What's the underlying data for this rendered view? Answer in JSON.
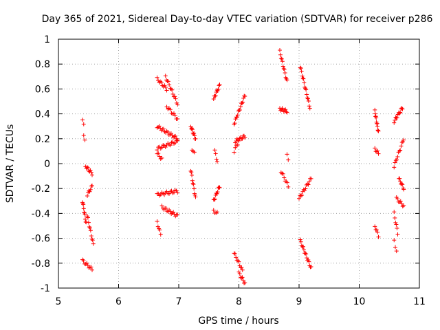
{
  "chart_data": {
    "type": "scatter",
    "title": "Day 365 of 2021, Sidereal Day-to-day VTEC variation (SDTVAR) for receiver p286",
    "xlabel": "GPS time / hours",
    "ylabel": "SDTVAR / TECUs",
    "xlim": [
      5,
      11
    ],
    "ylim": [
      -1,
      1
    ],
    "xticks": [
      5,
      6,
      7,
      8,
      9,
      10,
      11
    ],
    "yticks": [
      -1,
      -0.8,
      -0.6,
      -0.4,
      -0.2,
      0,
      0.2,
      0.4,
      0.6,
      0.8,
      1
    ],
    "ytick_labels": [
      "-1",
      "-0.8",
      "-0.6",
      "-0.4",
      "-0.2",
      "0",
      "0.2",
      "0.4",
      "0.6",
      "0.8",
      "1"
    ],
    "xtick_labels": [
      "5",
      "6",
      "7",
      "8",
      "9",
      "10",
      "11"
    ],
    "grid": true,
    "marker": "plus",
    "color": "#ff0000",
    "arcs": [
      {
        "x0": 5.4,
        "x1": 5.42,
        "y0": 0.34,
        "y1": 0.32,
        "n": 2
      },
      {
        "x0": 5.42,
        "x1": 5.44,
        "y0": 0.22,
        "y1": 0.2,
        "n": 2
      },
      {
        "x0": 5.45,
        "x1": 5.56,
        "y0": -0.02,
        "y1": -0.08,
        "n": 9
      },
      {
        "x0": 5.4,
        "x1": 5.46,
        "y0": -0.3,
        "y1": -0.48,
        "n": 10
      },
      {
        "x0": 5.48,
        "x1": 5.56,
        "y0": -0.25,
        "y1": -0.18,
        "n": 7
      },
      {
        "x0": 5.48,
        "x1": 5.58,
        "y0": -0.42,
        "y1": -0.65,
        "n": 10
      },
      {
        "x0": 5.4,
        "x1": 5.56,
        "y0": -0.78,
        "y1": -0.85,
        "n": 10
      },
      {
        "x0": 6.64,
        "x1": 6.8,
        "y0": 0.68,
        "y1": 0.6,
        "n": 10
      },
      {
        "x0": 6.78,
        "x1": 6.98,
        "y0": 0.7,
        "y1": 0.48,
        "n": 14
      },
      {
        "x0": 6.8,
        "x1": 6.98,
        "y0": 0.46,
        "y1": 0.36,
        "n": 10
      },
      {
        "x0": 6.64,
        "x1": 6.98,
        "y0": 0.3,
        "y1": 0.2,
        "n": 20
      },
      {
        "x0": 6.64,
        "x1": 6.98,
        "y0": 0.12,
        "y1": 0.18,
        "n": 18
      },
      {
        "x0": 6.64,
        "x1": 6.72,
        "y0": 0.08,
        "y1": 0.04,
        "n": 5
      },
      {
        "x0": 6.64,
        "x1": 6.98,
        "y0": -0.25,
        "y1": -0.22,
        "n": 18
      },
      {
        "x0": 6.72,
        "x1": 6.98,
        "y0": -0.35,
        "y1": -0.42,
        "n": 16
      },
      {
        "x0": 6.64,
        "x1": 6.7,
        "y0": -0.47,
        "y1": -0.57,
        "n": 5
      },
      {
        "x0": 7.2,
        "x1": 7.28,
        "y0": 0.3,
        "y1": 0.2,
        "n": 10
      },
      {
        "x0": 7.22,
        "x1": 7.26,
        "y0": 0.12,
        "y1": 0.08,
        "n": 3
      },
      {
        "x0": 7.2,
        "x1": 7.28,
        "y0": -0.05,
        "y1": -0.28,
        "n": 10
      },
      {
        "x0": 7.58,
        "x1": 7.68,
        "y0": 0.52,
        "y1": 0.63,
        "n": 10
      },
      {
        "x0": 7.6,
        "x1": 7.64,
        "y0": 0.1,
        "y1": 0.02,
        "n": 4
      },
      {
        "x0": 7.58,
        "x1": 7.68,
        "y0": -0.3,
        "y1": -0.18,
        "n": 10
      },
      {
        "x0": 7.58,
        "x1": 7.64,
        "y0": -0.38,
        "y1": -0.4,
        "n": 4
      },
      {
        "x0": 7.92,
        "x1": 8.1,
        "y0": 0.32,
        "y1": 0.55,
        "n": 16
      },
      {
        "x0": 7.94,
        "x1": 8.1,
        "y0": 0.18,
        "y1": 0.22,
        "n": 12
      },
      {
        "x0": 7.92,
        "x1": 7.98,
        "y0": 0.1,
        "y1": 0.16,
        "n": 4
      },
      {
        "x0": 7.92,
        "x1": 8.06,
        "y0": -0.72,
        "y1": -0.86,
        "n": 10
      },
      {
        "x0": 8.0,
        "x1": 8.1,
        "y0": -0.88,
        "y1": -0.96,
        "n": 8
      },
      {
        "x0": 8.68,
        "x1": 8.8,
        "y0": 0.9,
        "y1": 0.66,
        "n": 12
      },
      {
        "x0": 8.68,
        "x1": 8.8,
        "y0": 0.44,
        "y1": 0.42,
        "n": 10
      },
      {
        "x0": 8.8,
        "x1": 8.82,
        "y0": 0.08,
        "y1": 0.04,
        "n": 2
      },
      {
        "x0": 8.7,
        "x1": 8.82,
        "y0": -0.06,
        "y1": -0.18,
        "n": 8
      },
      {
        "x0": 9.02,
        "x1": 9.18,
        "y0": 0.78,
        "y1": 0.45,
        "n": 16
      },
      {
        "x0": 9.0,
        "x1": 9.2,
        "y0": -0.28,
        "y1": -0.12,
        "n": 14
      },
      {
        "x0": 9.02,
        "x1": 9.2,
        "y0": -0.62,
        "y1": -0.84,
        "n": 16
      },
      {
        "x0": 10.26,
        "x1": 10.32,
        "y0": 0.42,
        "y1": 0.25,
        "n": 12
      },
      {
        "x0": 10.26,
        "x1": 10.32,
        "y0": 0.12,
        "y1": 0.08,
        "n": 5
      },
      {
        "x0": 10.26,
        "x1": 10.32,
        "y0": -0.5,
        "y1": -0.58,
        "n": 5
      },
      {
        "x0": 10.58,
        "x1": 10.72,
        "y0": 0.34,
        "y1": 0.45,
        "n": 12
      },
      {
        "x0": 10.58,
        "x1": 10.74,
        "y0": -0.02,
        "y1": 0.2,
        "n": 12
      },
      {
        "x0": 10.66,
        "x1": 10.74,
        "y0": -0.12,
        "y1": -0.2,
        "n": 8
      },
      {
        "x0": 10.62,
        "x1": 10.74,
        "y0": -0.28,
        "y1": -0.34,
        "n": 8
      },
      {
        "x0": 10.58,
        "x1": 10.64,
        "y0": -0.4,
        "y1": -0.56,
        "n": 6
      },
      {
        "x0": 10.58,
        "x1": 10.62,
        "y0": -0.62,
        "y1": -0.7,
        "n": 3
      }
    ]
  }
}
